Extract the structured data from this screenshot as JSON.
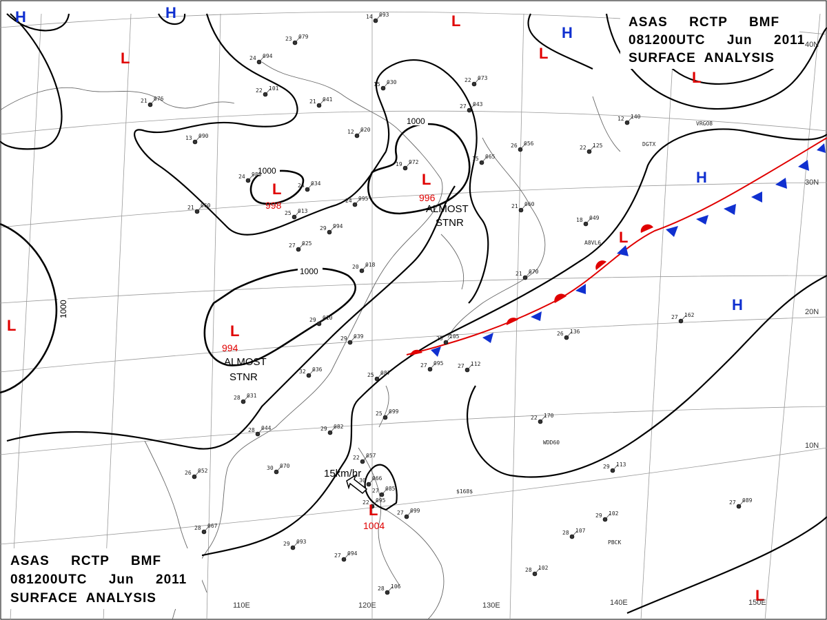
{
  "header_top": {
    "line1": "ASAS     RCTP     BMF",
    "line2": "081200UTC     Jun     2011",
    "line3": "SURFACE  ANALYSIS"
  },
  "header_bottom": {
    "line1": "ASAS     RCTP     BMF",
    "line2": "081200UTC     Jun     2011",
    "line3": "SURFACE  ANALYSIS"
  },
  "longitude_labels": [
    "110E",
    "120E",
    "130E",
    "140E",
    "150E"
  ],
  "latitude_labels": [
    "40N",
    "30N",
    "20N",
    "10N"
  ],
  "isobar_labels": [
    "1000",
    "1000",
    "1000",
    "1000"
  ],
  "pressure_systems": {
    "lows": [
      {
        "symbol": "L",
        "value": ""
      },
      {
        "symbol": "L",
        "value": ""
      },
      {
        "symbol": "L",
        "value": ""
      },
      {
        "symbol": "L",
        "value": ""
      },
      {
        "symbol": "L",
        "value": "998"
      },
      {
        "symbol": "L",
        "value": "996"
      },
      {
        "symbol": "L",
        "value": "994"
      },
      {
        "symbol": "L",
        "value": ""
      },
      {
        "symbol": "L",
        "value": ""
      },
      {
        "symbol": "L",
        "value": "1004"
      },
      {
        "symbol": "L",
        "value": ""
      }
    ],
    "highs": [
      {
        "symbol": "H"
      },
      {
        "symbol": "H"
      },
      {
        "symbol": "H"
      },
      {
        "symbol": "H"
      },
      {
        "symbol": "H"
      }
    ]
  },
  "annotations": {
    "stationary_1_line1": "ALMOST",
    "stationary_1_line2": "STNR",
    "stationary_2_line1": "ALMOST",
    "stationary_2_line2": "STNR",
    "movement": "15km/hr"
  },
  "ship_ids": [
    "DGTX",
    "A8VL6",
    "WDD60",
    "PBCK",
    "VRGO8",
    "$168$"
  ],
  "station_obs": [
    {
      "t": "14",
      "p": "093"
    },
    {
      "t": "23",
      "p": "079"
    },
    {
      "t": "24",
      "p": "094"
    },
    {
      "t": "22",
      "p": "101"
    },
    {
      "t": "21",
      "p": "076"
    },
    {
      "t": "21",
      "p": "041"
    },
    {
      "t": "15",
      "p": "030"
    },
    {
      "t": "13",
      "p": "090"
    },
    {
      "t": "12",
      "p": "020"
    },
    {
      "t": "19",
      "p": "972"
    },
    {
      "t": "24",
      "p": "989"
    },
    {
      "t": "24",
      "p": "034"
    },
    {
      "t": "24",
      "p": "995"
    },
    {
      "t": "21",
      "p": "060"
    },
    {
      "t": "25",
      "p": "013"
    },
    {
      "t": "29",
      "p": "994"
    },
    {
      "t": "27",
      "p": "025"
    },
    {
      "t": "20",
      "p": "018"
    },
    {
      "t": "22",
      "p": "073"
    },
    {
      "t": "27",
      "p": "043"
    },
    {
      "t": "26",
      "p": "056"
    },
    {
      "t": "15",
      "p": "065"
    },
    {
      "t": "21",
      "p": "060"
    },
    {
      "t": "18",
      "p": "049"
    },
    {
      "t": "21",
      "p": "070"
    },
    {
      "t": "27",
      "p": "162"
    },
    {
      "t": "29",
      "p": "010"
    },
    {
      "t": "29",
      "p": "039"
    },
    {
      "t": "25",
      "p": "105"
    },
    {
      "t": "27",
      "p": "095"
    },
    {
      "t": "27",
      "p": "112"
    },
    {
      "t": "26",
      "p": "136"
    },
    {
      "t": "32",
      "p": "036"
    },
    {
      "t": "25",
      "p": "087"
    },
    {
      "t": "28",
      "p": "031"
    },
    {
      "t": "28",
      "p": "044"
    },
    {
      "t": "29",
      "p": "082"
    },
    {
      "t": "25",
      "p": "099"
    },
    {
      "t": "22",
      "p": "170"
    },
    {
      "t": "30",
      "p": "070"
    },
    {
      "t": "26",
      "p": "052"
    },
    {
      "t": "29",
      "p": "113"
    },
    {
      "t": "28",
      "p": "067"
    },
    {
      "t": "29",
      "p": "093"
    },
    {
      "t": "27",
      "p": "094"
    },
    {
      "t": "28",
      "p": "107"
    },
    {
      "t": "29",
      "p": "102"
    },
    {
      "t": "27",
      "p": "089"
    },
    {
      "t": "28",
      "p": "102"
    },
    {
      "t": "28",
      "p": "106"
    },
    {
      "t": "27",
      "p": "099"
    },
    {
      "t": "22",
      "p": "057"
    },
    {
      "t": "27",
      "p": "085"
    },
    {
      "t": "30",
      "p": "066"
    },
    {
      "t": "22",
      "p": "095"
    },
    {
      "t": "22",
      "p": "125"
    },
    {
      "t": "12",
      "p": "140"
    }
  ],
  "colors": {
    "low": "#e00000",
    "high": "#1030d0",
    "warm_front": "#e00000",
    "cold_front": "#1030d0",
    "isobar": "#000000",
    "grid": "#999999",
    "coast": "#666666"
  }
}
